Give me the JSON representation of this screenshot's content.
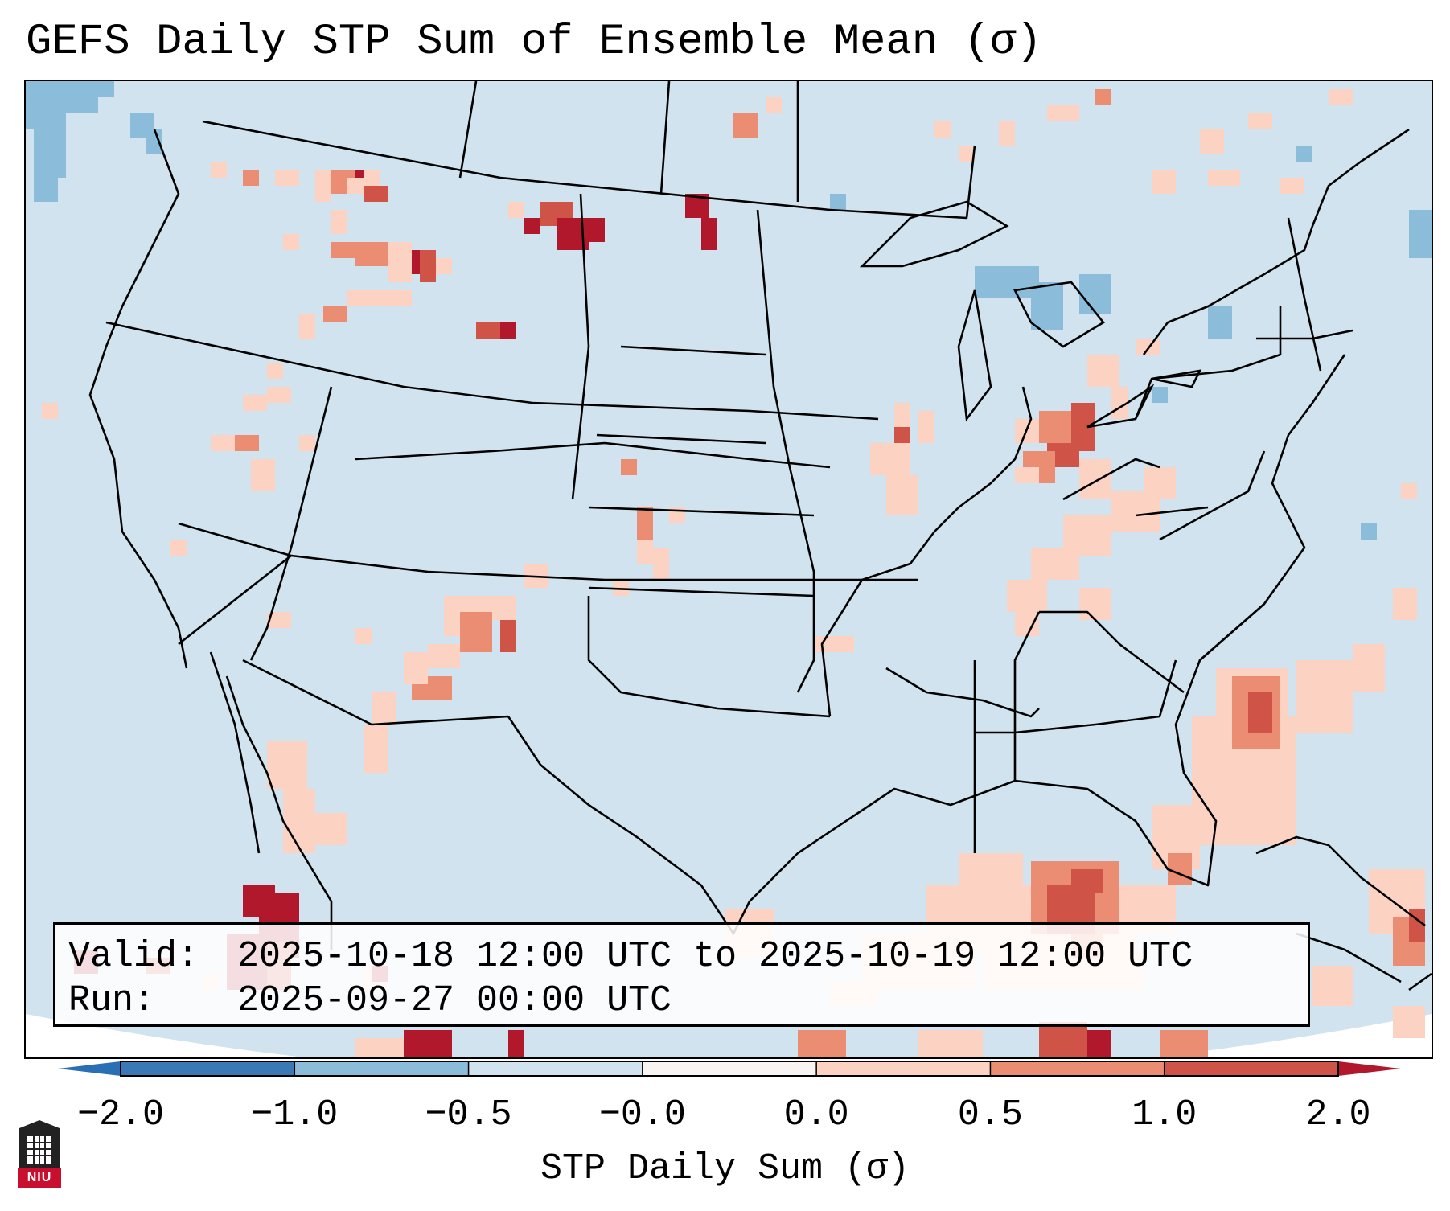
{
  "title": "GEFS Daily STP Sum of Ensemble Mean (σ)",
  "info": {
    "valid_label": "Valid:",
    "valid_value": "2025-10-18 12:00 UTC to 2025-10-19 12:00 UTC",
    "run_label": "Run:",
    "run_value": "2025-09-27 00:00 UTC"
  },
  "colorbar": {
    "title": "STP Daily Sum (σ)",
    "ticks": [
      "−2.0",
      "−1.0",
      "−0.5",
      "−0.0",
      "0.0",
      "0.5",
      "1.0",
      "2.0"
    ],
    "colors": [
      "#3a78b6",
      "#8bbcd9",
      "#d0e3ee",
      "#f7f4f2",
      "#fcd3c2",
      "#ea8d73",
      "#cf5447"
    ],
    "extend_low_color": "#2a6fb4",
    "extend_high_color": "#b2182b"
  },
  "map": {
    "background_color": "#d0e3ee",
    "outline_color": "#000000",
    "anomalies": [
      {
        "region": "Idaho-Montana",
        "level": "0.5 to 1.0"
      },
      {
        "region": "North Dakota",
        "level": "above 2.0"
      },
      {
        "region": "Ohio Valley",
        "level": "1.0 to 2.0"
      },
      {
        "region": "Gulf of Mexico",
        "level": "1.0 to 2.0"
      },
      {
        "region": "Western Atlantic",
        "level": "1.0 to 2.0"
      },
      {
        "region": "Gulf of California",
        "level": "above 2.0"
      }
    ]
  },
  "logo": {
    "text": "NIU"
  }
}
